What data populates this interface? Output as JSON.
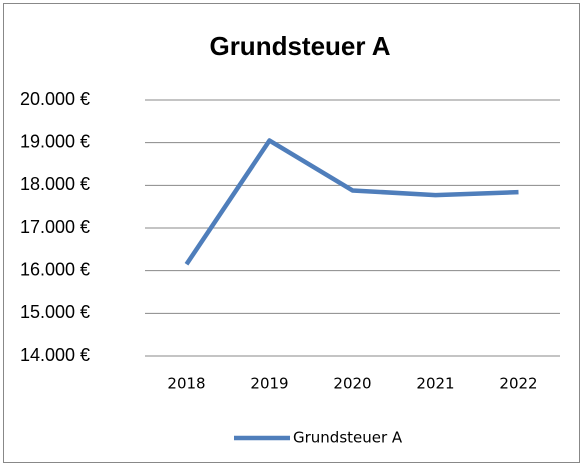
{
  "chart_data": {
    "type": "line",
    "title": "Grundsteuer A",
    "categories": [
      "2018",
      "2019",
      "2020",
      "2021",
      "2022"
    ],
    "series": [
      {
        "name": "Grundsteuer A",
        "color": "#4f7ebb",
        "values": [
          16150,
          19050,
          17880,
          17770,
          17840
        ]
      }
    ],
    "ylim": [
      14000,
      20000
    ],
    "yticks": [
      {
        "value": 14000,
        "label": "14.000 €"
      },
      {
        "value": 15000,
        "label": "15.000 €"
      },
      {
        "value": 16000,
        "label": "16.000 €"
      },
      {
        "value": 17000,
        "label": "17.000 €"
      },
      {
        "value": 18000,
        "label": "18.000 €"
      },
      {
        "value": 19000,
        "label": "19.000 €"
      },
      {
        "value": 20000,
        "label": "20.000 €"
      }
    ],
    "grid": true,
    "legend": "bottom"
  }
}
